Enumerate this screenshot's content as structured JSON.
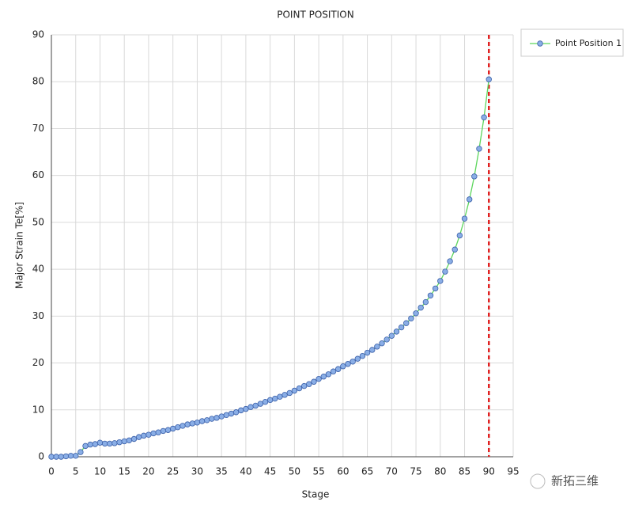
{
  "chart_data": {
    "type": "line",
    "title": "POINT POSITION",
    "x_label": "Stage",
    "y_label": "Major Strain Te[%]",
    "x": [
      0,
      1,
      2,
      3,
      4,
      5,
      6,
      7,
      8,
      9,
      10,
      11,
      12,
      13,
      14,
      15,
      16,
      17,
      18,
      19,
      20,
      21,
      22,
      23,
      24,
      25,
      26,
      27,
      28,
      29,
      30,
      31,
      32,
      33,
      34,
      35,
      36,
      37,
      38,
      39,
      40,
      41,
      42,
      43,
      44,
      45,
      46,
      47,
      48,
      49,
      50,
      51,
      52,
      53,
      54,
      55,
      56,
      57,
      58,
      59,
      60,
      61,
      62,
      63,
      64,
      65,
      66,
      67,
      68,
      69,
      70,
      71,
      72,
      73,
      74,
      75,
      76,
      77,
      78,
      79,
      80,
      81,
      82,
      83,
      84,
      85,
      86,
      87,
      88,
      89,
      90
    ],
    "series": [
      {
        "name": "Point Position 1",
        "color": "#5cd65c",
        "marker_color": "#8aaee6",
        "values": [
          0,
          0,
          0,
          0.1,
          0.2,
          0.2,
          1.0,
          2.3,
          2.6,
          2.7,
          3.0,
          2.8,
          2.8,
          2.9,
          3.1,
          3.3,
          3.5,
          3.8,
          4.2,
          4.5,
          4.7,
          5.0,
          5.2,
          5.5,
          5.7,
          6.0,
          6.3,
          6.6,
          6.9,
          7.1,
          7.3,
          7.6,
          7.8,
          8.1,
          8.3,
          8.6,
          8.9,
          9.2,
          9.5,
          9.9,
          10.2,
          10.6,
          10.9,
          11.3,
          11.7,
          12.1,
          12.4,
          12.8,
          13.2,
          13.6,
          14.1,
          14.6,
          15.1,
          15.5,
          16.0,
          16.6,
          17.1,
          17.6,
          18.2,
          18.7,
          19.3,
          19.8,
          20.3,
          20.9,
          21.5,
          22.2,
          22.8,
          23.5,
          24.2,
          25.0,
          25.8,
          26.7,
          27.6,
          28.5,
          29.5,
          30.6,
          31.8,
          33.0,
          34.4,
          35.9,
          37.5,
          39.5,
          41.7,
          44.2,
          47.2,
          50.8,
          54.9,
          59.8,
          65.7,
          72.4,
          80.5
        ]
      }
    ],
    "xlim": [
      0,
      95
    ],
    "xticks": [
      0,
      5,
      10,
      15,
      20,
      25,
      30,
      35,
      40,
      45,
      50,
      55,
      60,
      65,
      70,
      75,
      80,
      85,
      90,
      95
    ],
    "ylim": [
      0,
      90
    ],
    "yticks": [
      0,
      10,
      20,
      30,
      40,
      50,
      60,
      70,
      80,
      90
    ],
    "grid": true,
    "legend": "right",
    "vline": {
      "x": 90,
      "color": "#e02020"
    },
    "watermark": "新拓三维"
  }
}
